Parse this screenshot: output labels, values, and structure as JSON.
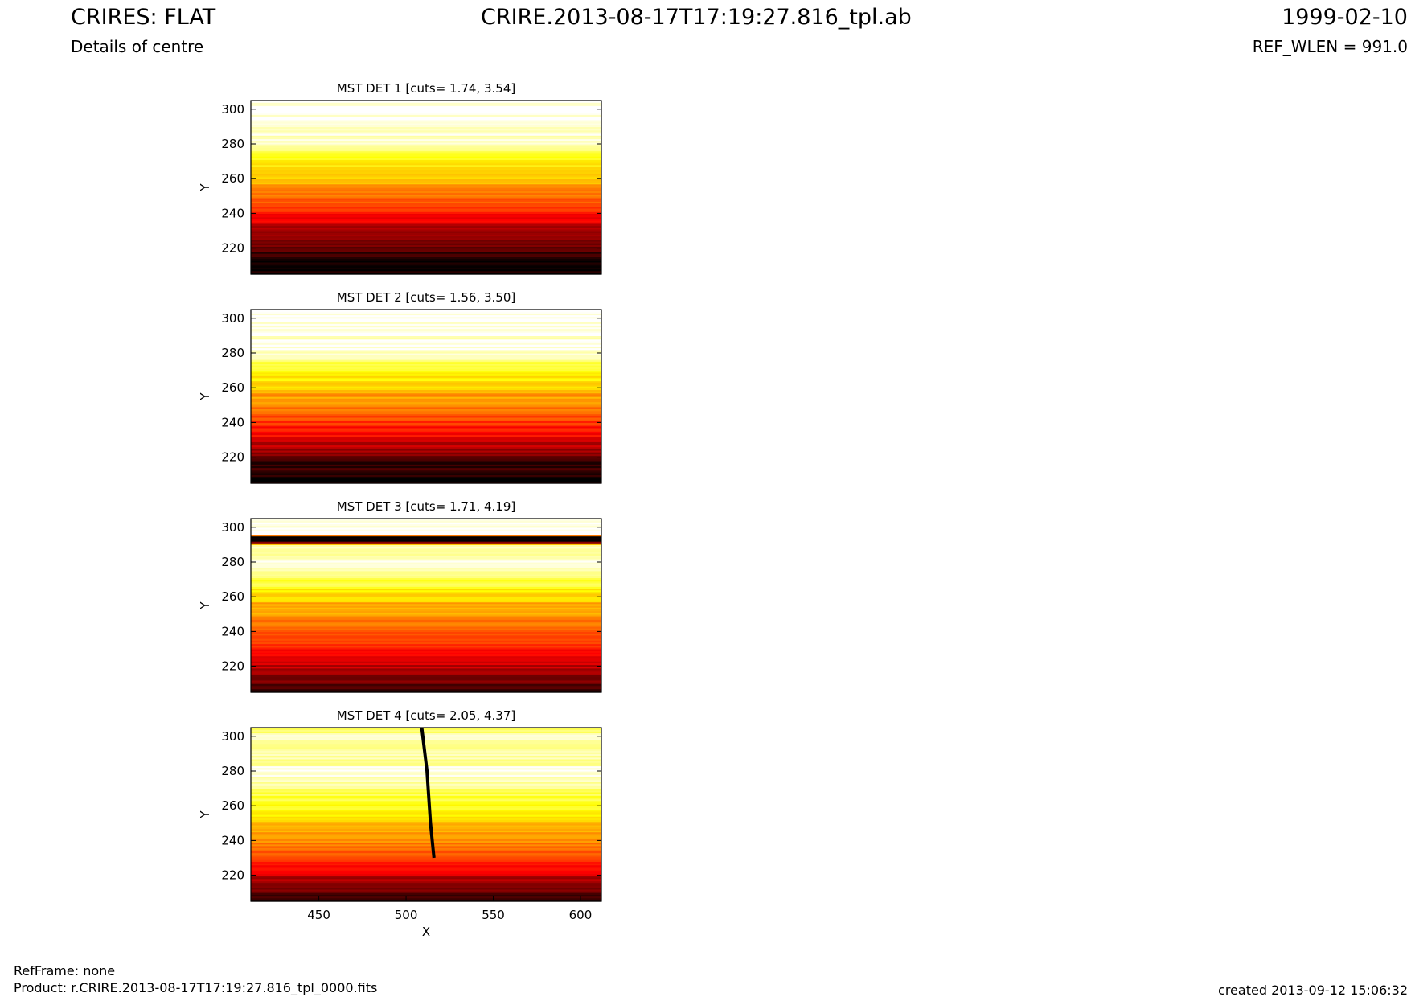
{
  "header": {
    "title": "CRIRES: FLAT",
    "subtitle": "Details of centre",
    "filename": "CRIRE.2013-08-17T17:19:27.816_tpl.ab",
    "date": "1999-02-10",
    "ref_wlen": "REF_WLEN = 991.0"
  },
  "footer": {
    "refframe": "RefFrame: none",
    "product": "Product: r.CRIRE.2013-08-17T17:19:27.816_tpl_0000.fits",
    "created": "created 2013-09-12 15:06:32"
  },
  "colors": {
    "colormap": [
      "#000000",
      "#ff0000",
      "#ffff00",
      "#ffffff"
    ],
    "axis": "#000000"
  },
  "chart_data": [
    {
      "type": "heatmap",
      "title": "MST DET 1 [cuts= 1.74, 3.54]",
      "xlabel": "",
      "ylabel": "Y",
      "xlim": [
        411,
        612
      ],
      "ylim": [
        205,
        305
      ],
      "yticks": [
        220,
        240,
        260,
        280,
        300
      ],
      "xticks": [],
      "colormap": "hot",
      "profile": [
        [
          205,
          0.0
        ],
        [
          215,
          0.05
        ],
        [
          230,
          0.25
        ],
        [
          245,
          0.45
        ],
        [
          255,
          0.6
        ],
        [
          265,
          0.72
        ],
        [
          275,
          0.8
        ],
        [
          278,
          0.95
        ],
        [
          305,
          1.0
        ]
      ],
      "features": []
    },
    {
      "type": "heatmap",
      "title": "MST DET 2 [cuts= 1.56, 3.50]",
      "xlabel": "",
      "ylabel": "Y",
      "xlim": [
        411,
        612
      ],
      "ylim": [
        205,
        305
      ],
      "yticks": [
        220,
        240,
        260,
        280,
        300
      ],
      "xticks": [],
      "colormap": "hot",
      "profile": [
        [
          205,
          0.0
        ],
        [
          218,
          0.1
        ],
        [
          232,
          0.35
        ],
        [
          245,
          0.5
        ],
        [
          258,
          0.63
        ],
        [
          268,
          0.75
        ],
        [
          275,
          0.82
        ],
        [
          279,
          0.95
        ],
        [
          305,
          1.0
        ]
      ],
      "features": []
    },
    {
      "type": "heatmap",
      "title": "MST DET 3 [cuts= 1.71, 4.19]",
      "xlabel": "",
      "ylabel": "Y",
      "xlim": [
        411,
        612
      ],
      "ylim": [
        205,
        305
      ],
      "yticks": [
        220,
        240,
        260,
        280,
        300
      ],
      "xticks": [],
      "colormap": "hot",
      "profile": [
        [
          205,
          0.05
        ],
        [
          215,
          0.2
        ],
        [
          230,
          0.4
        ],
        [
          245,
          0.55
        ],
        [
          258,
          0.65
        ],
        [
          268,
          0.8
        ],
        [
          278,
          0.97
        ],
        [
          290,
          0.9
        ],
        [
          292,
          0.0
        ],
        [
          295,
          0.0
        ],
        [
          296,
          1.0
        ],
        [
          305,
          1.0
        ]
      ],
      "features": []
    },
    {
      "type": "heatmap",
      "title": "MST DET 4 [cuts= 2.05, 4.37]",
      "xlabel": "X",
      "ylabel": "Y",
      "xlim": [
        411,
        612
      ],
      "ylim": [
        205,
        305
      ],
      "yticks": [
        220,
        240,
        260,
        280,
        300
      ],
      "xticks": [
        450,
        500,
        550,
        600
      ],
      "colormap": "hot",
      "profile": [
        [
          205,
          0.05
        ],
        [
          215,
          0.2
        ],
        [
          230,
          0.45
        ],
        [
          245,
          0.6
        ],
        [
          258,
          0.75
        ],
        [
          270,
          0.85
        ],
        [
          280,
          0.97
        ],
        [
          290,
          0.88
        ],
        [
          300,
          0.95
        ],
        [
          305,
          0.8
        ]
      ],
      "features": [
        {
          "kind": "dark-line",
          "points": [
            [
              509,
              305
            ],
            [
              512,
              280
            ],
            [
              514,
              250
            ],
            [
              516,
              230
            ]
          ]
        }
      ]
    }
  ]
}
